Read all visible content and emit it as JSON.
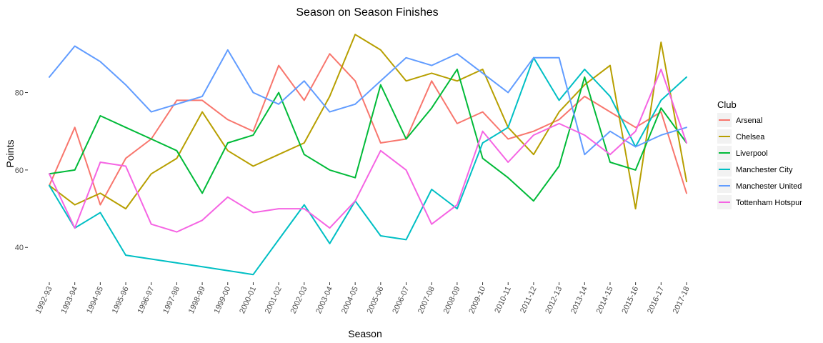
{
  "chart_data": {
    "type": "line",
    "title": "Season on Season Finishes",
    "xlabel": "Season",
    "ylabel": "Points",
    "ylim": [
      31,
      98
    ],
    "yticks": [
      40,
      60,
      80
    ],
    "grid": false,
    "legend_title": "Club",
    "legend_position": "right",
    "categories": [
      "1992-93",
      "1993-94",
      "1994-95",
      "1995-96",
      "1996-97",
      "1997-98",
      "1998-99",
      "1999-00",
      "2000-01",
      "2001-02",
      "2002-03",
      "2003-04",
      "2004-05",
      "2005-06",
      "2006-07",
      "2007-08",
      "2008-09",
      "2009-10",
      "2010-11",
      "2011-12",
      "2012-13",
      "2013-14",
      "2014-15",
      "2015-16",
      "2016-17",
      "2017-18"
    ],
    "series": [
      {
        "name": "Arsenal",
        "color": "#F8766D",
        "values": [
          56,
          71,
          51,
          63,
          68,
          78,
          78,
          73,
          70,
          87,
          78,
          90,
          83,
          67,
          68,
          83,
          72,
          75,
          68,
          70,
          73,
          79,
          75,
          71,
          75,
          54
        ]
      },
      {
        "name": "Chelsea",
        "color": "#B79F00",
        "values": [
          56,
          51,
          54,
          50,
          59,
          63,
          75,
          65,
          61,
          64,
          67,
          79,
          95,
          91,
          83,
          85,
          83,
          86,
          71,
          64,
          75,
          82,
          87,
          50,
          93,
          57
        ]
      },
      {
        "name": "Liverpool",
        "color": "#00BA38",
        "values": [
          59,
          60,
          74,
          71,
          68,
          65,
          54,
          67,
          69,
          80,
          64,
          60,
          58,
          82,
          68,
          76,
          86,
          63,
          58,
          52,
          61,
          84,
          62,
          60,
          76,
          67
        ]
      },
      {
        "name": "Manchester City",
        "color": "#00BFC4",
        "values": [
          56,
          45,
          49,
          38,
          37,
          36,
          35,
          34,
          33,
          42,
          51,
          41,
          52,
          43,
          42,
          55,
          50,
          67,
          71,
          89,
          78,
          86,
          79,
          66,
          78,
          84
        ]
      },
      {
        "name": "Manchester United",
        "color": "#619CFF",
        "values": [
          84,
          92,
          88,
          82,
          75,
          77,
          79,
          91,
          80,
          77,
          83,
          75,
          77,
          83,
          89,
          87,
          90,
          85,
          80,
          89,
          89,
          64,
          70,
          66,
          69,
          71
        ]
      },
      {
        "name": "Tottenham Hotspur",
        "color": "#F564E3",
        "values": [
          59,
          45,
          62,
          61,
          46,
          44,
          47,
          53,
          49,
          50,
          50,
          45,
          52,
          65,
          60,
          46,
          51,
          70,
          62,
          69,
          72,
          69,
          64,
          70,
          86,
          67
        ]
      }
    ]
  }
}
